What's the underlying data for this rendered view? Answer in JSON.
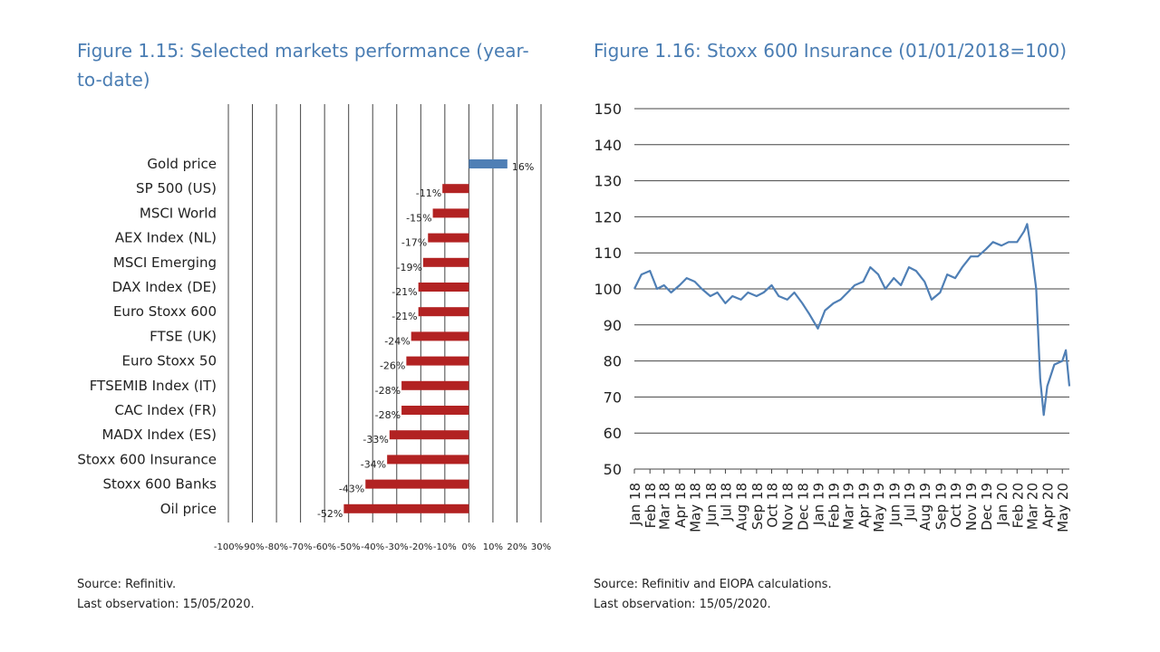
{
  "figure1": {
    "title": "Figure 1.15: Selected markets performance (year-to-date)",
    "source": "Source: Refinitiv.",
    "last_obs": "Last observation: 15/05/2020."
  },
  "figure2": {
    "title": "Figure 1.16: Stoxx 600 Insurance (01/01/2018=100)",
    "source": "Source: Refinitiv and EIOPA calculations.",
    "last_obs": "Last observation: 15/05/2020."
  },
  "colors": {
    "negative": "#b22222",
    "positive": "#4f7fb5",
    "line": "#4f7fb5",
    "grid": "#444444",
    "title": "#4a7db3"
  },
  "chart_data": [
    {
      "type": "bar",
      "orientation": "horizontal",
      "title": "Figure 1.15: Selected markets performance (year-to-date)",
      "categories": [
        "Gold price",
        "SP 500 (US)",
        "MSCI World",
        "AEX Index (NL)",
        "MSCI Emerging",
        "DAX Index (DE)",
        "Euro Stoxx 600",
        "FTSE (UK)",
        "Euro Stoxx 50",
        "FTSEMIB Index (IT)",
        "CAC Index (FR)",
        "MADX Index (ES)",
        "Stoxx 600 Insurance",
        "Stoxx 600 Banks",
        "Oil price"
      ],
      "values": [
        16,
        -11,
        -15,
        -17,
        -19,
        -21,
        -21,
        -24,
        -26,
        -28,
        -28,
        -33,
        -34,
        -43,
        -52
      ],
      "data_labels": [
        "16%",
        "-11%",
        "-15%",
        "-17%",
        "-19%",
        "-21%",
        "-21%",
        "-24%",
        "-26%",
        "-28%",
        "-28%",
        "-33%",
        "-34%",
        "-43%",
        "-52%"
      ],
      "xlim": [
        -100,
        30
      ],
      "xticks": [
        -100,
        -90,
        -80,
        -70,
        -60,
        -50,
        -40,
        -30,
        -20,
        -10,
        0,
        10,
        20,
        30
      ],
      "xtick_labels": [
        "-100%",
        "-90%",
        "-80%",
        "-70%",
        "-60%",
        "-50%",
        "-40%",
        "-30%",
        "-20%",
        "-10%",
        "0%",
        "10%",
        "20%",
        "30%"
      ],
      "grid": "vertical"
    },
    {
      "type": "line",
      "title": "Figure 1.16: Stoxx 600 Insurance (01/01/2018=100)",
      "ylim": [
        50,
        150
      ],
      "yticks": [
        50,
        60,
        70,
        80,
        90,
        100,
        110,
        120,
        130,
        140,
        150
      ],
      "xtick_labels": [
        "Jan 18",
        "Feb 18",
        "Mar 18",
        "Apr 18",
        "May 18",
        "Jun 18",
        "Jul 18",
        "Aug 18",
        "Sep 18",
        "Oct 18",
        "Nov 18",
        "Dec 18",
        "Jan 19",
        "Feb 19",
        "Mar 19",
        "Apr 19",
        "May 19",
        "Jun 19",
        "Jul 19",
        "Aug 19",
        "Sep 19",
        "Oct 19",
        "Nov 19",
        "Dec 19",
        "Jan 20",
        "Feb 20",
        "Mar 20",
        "Apr 20",
        "May 20"
      ],
      "grid": "horizontal",
      "series": [
        {
          "x": [
            "2018-01-01",
            "2018-01-15",
            "2018-02-01",
            "2018-02-15",
            "2018-03-01",
            "2018-03-15",
            "2018-04-01",
            "2018-04-15",
            "2018-05-01",
            "2018-05-15",
            "2018-06-01",
            "2018-06-15",
            "2018-07-01",
            "2018-07-15",
            "2018-08-01",
            "2018-08-15",
            "2018-09-01",
            "2018-09-15",
            "2018-10-01",
            "2018-10-15",
            "2018-11-01",
            "2018-11-15",
            "2018-12-01",
            "2018-12-15",
            "2019-01-01",
            "2019-01-15",
            "2019-02-01",
            "2019-02-15",
            "2019-03-01",
            "2019-03-15",
            "2019-04-01",
            "2019-04-15",
            "2019-05-01",
            "2019-05-15",
            "2019-06-01",
            "2019-06-15",
            "2019-07-01",
            "2019-07-15",
            "2019-08-01",
            "2019-08-15",
            "2019-09-01",
            "2019-09-15",
            "2019-10-01",
            "2019-10-15",
            "2019-11-01",
            "2019-11-15",
            "2019-12-01",
            "2019-12-15",
            "2020-01-01",
            "2020-01-15",
            "2020-02-01",
            "2020-02-15",
            "2020-02-21",
            "2020-03-01",
            "2020-03-10",
            "2020-03-18",
            "2020-03-25",
            "2020-04-01",
            "2020-04-15",
            "2020-05-01",
            "2020-05-08",
            "2020-05-15"
          ],
          "y": [
            100,
            104,
            105,
            100,
            101,
            99,
            101,
            103,
            102,
            100,
            98,
            99,
            96,
            98,
            97,
            99,
            98,
            99,
            101,
            98,
            97,
            99,
            96,
            93,
            89,
            94,
            96,
            97,
            99,
            101,
            102,
            106,
            104,
            100,
            103,
            101,
            106,
            105,
            102,
            97,
            99,
            104,
            103,
            106,
            109,
            109,
            111,
            113,
            112,
            113,
            113,
            116,
            118,
            110,
            100,
            75,
            65,
            73,
            79,
            80,
            83,
            73
          ]
        }
      ]
    }
  ]
}
